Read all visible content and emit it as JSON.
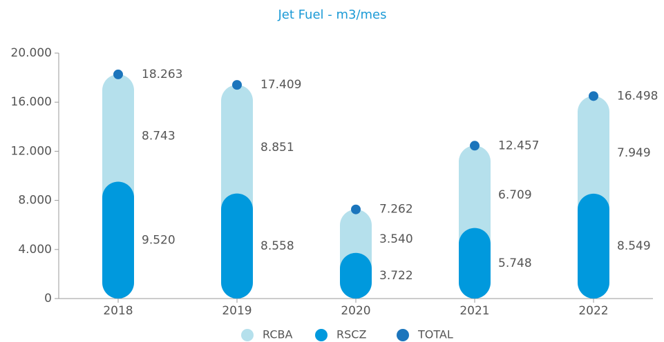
{
  "chart_data": {
    "type": "stacked_bar",
    "title": "Jet Fuel - m3/mes",
    "categories": [
      "2018",
      "2019",
      "2020",
      "2021",
      "2022"
    ],
    "series": [
      {
        "name": "RSCZ",
        "color": "#0099dd",
        "values": [
          9520,
          8558,
          3722,
          5748,
          8549
        ],
        "value_labels": [
          "9.520",
          "8.558",
          "3.722",
          "5.748",
          "8.549"
        ]
      },
      {
        "name": "RCBA",
        "color": "#b5e0ec",
        "values": [
          8743,
          8851,
          3540,
          6709,
          7949
        ],
        "value_labels": [
          "8.743",
          "8.851",
          "3.540",
          "6.709",
          "7.949"
        ]
      },
      {
        "name": "TOTAL",
        "color": "#1b75bc",
        "values": [
          18263,
          17409,
          7262,
          12457,
          16498
        ],
        "value_labels": [
          "18.263",
          "17.409",
          "7.262",
          "12.457",
          "16.498"
        ]
      }
    ],
    "ylim": [
      0,
      20000
    ],
    "yticks": [
      0,
      {
        "value": 4000,
        "label": "4.000"
      },
      {
        "value": 8000,
        "label": "8.000"
      },
      {
        "value": 12000,
        "label": "12.000"
      },
      {
        "value": 16000,
        "label": "16.000"
      },
      {
        "value": 20000,
        "label": "20.000"
      }
    ],
    "legend": "bottom"
  }
}
